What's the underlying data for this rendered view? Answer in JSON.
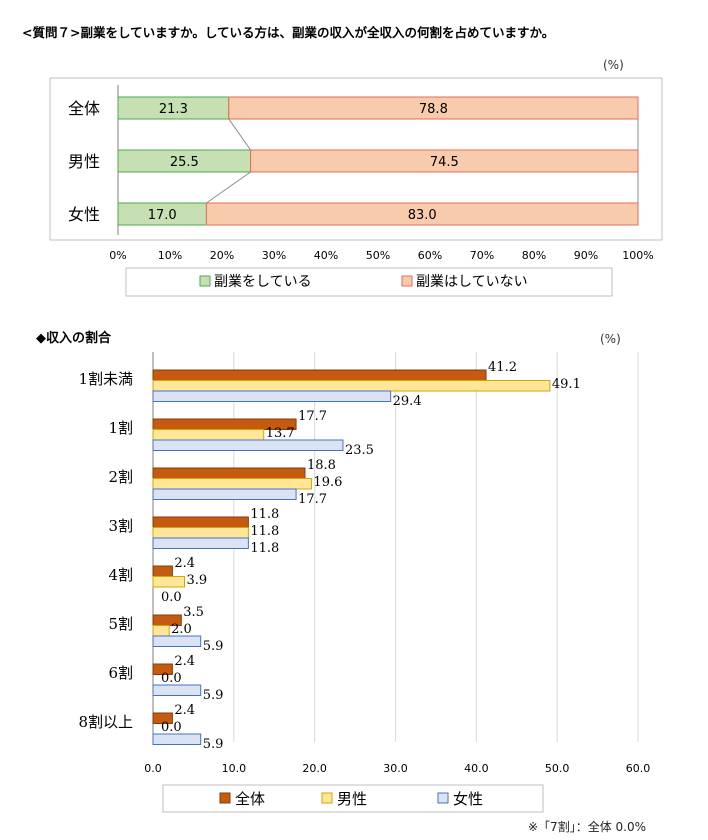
{
  "question": "<質問７>副業をしていますか。している方は、副業の収入が全収入の何割を占めていますか。",
  "unit_label_1": "(%)",
  "section2_title": "◆収入の割合",
  "unit_label_2": "(%)",
  "footnote": "※「7割」：全体 0.0%",
  "chart_data": [
    {
      "type": "bar",
      "stacked": true,
      "orientation": "horizontal",
      "categories": [
        "全体",
        "男性",
        "女性"
      ],
      "series": [
        {
          "name": "副業をしている",
          "values": [
            21.3,
            25.5,
            17.0
          ],
          "color": "#c6e0b4",
          "border": "#4ea94e"
        },
        {
          "name": "副業はしていない",
          "values": [
            78.8,
            74.5,
            83.0
          ],
          "color": "#f8cbad",
          "border": "#e46c5a"
        }
      ],
      "xlim": [
        0,
        100
      ],
      "x_ticks": [
        "0%",
        "10%",
        "20%",
        "30%",
        "40%",
        "50%",
        "60%",
        "70%",
        "80%",
        "90%",
        "100%"
      ],
      "legend_position": "bottom"
    },
    {
      "type": "bar",
      "orientation": "horizontal",
      "categories": [
        "1割未満",
        "1割",
        "2割",
        "3割",
        "4割",
        "5割",
        "6割",
        "8割以上"
      ],
      "series": [
        {
          "name": "全体",
          "values": [
            41.2,
            17.7,
            18.8,
            11.8,
            2.4,
            3.5,
            2.4,
            2.4
          ],
          "color": "#c55a11",
          "border": "#843c0c"
        },
        {
          "name": "男性",
          "values": [
            49.1,
            13.7,
            19.6,
            11.8,
            3.9,
            2.0,
            0.0,
            0.0
          ],
          "color": "#ffe699",
          "border": "#d6a400"
        },
        {
          "name": "女性",
          "values": [
            29.4,
            23.5,
            17.7,
            11.8,
            0.0,
            5.9,
            5.9,
            5.9
          ],
          "color": "#dae3f3",
          "border": "#4472c4"
        }
      ],
      "xlim": [
        0,
        60
      ],
      "x_ticks": [
        "0.0",
        "10.0",
        "20.0",
        "30.0",
        "40.0",
        "50.0",
        "60.0"
      ],
      "grid": true,
      "legend_position": "bottom"
    }
  ]
}
